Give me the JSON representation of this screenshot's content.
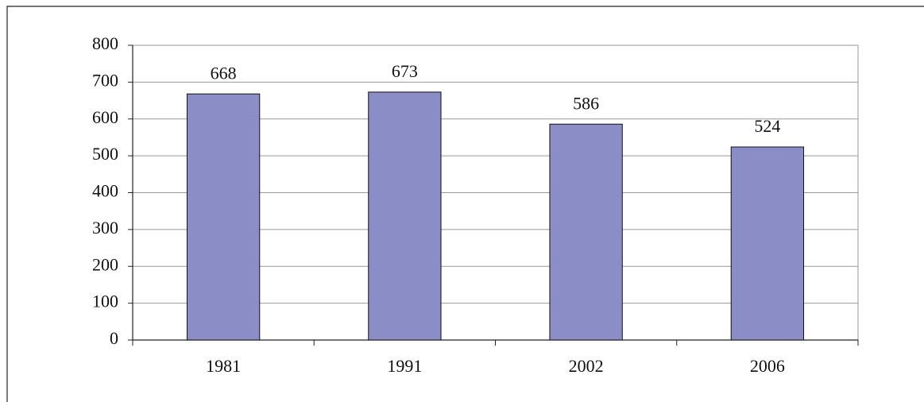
{
  "chart_data": {
    "type": "bar",
    "categories": [
      "1981",
      "1991",
      "2002",
      "2006"
    ],
    "values": [
      668,
      673,
      586,
      524
    ],
    "color": "#8b8ec6",
    "ylim": [
      0,
      800
    ],
    "yticks": [
      0,
      100,
      200,
      300,
      400,
      500,
      600,
      700,
      800
    ],
    "grid": true
  }
}
